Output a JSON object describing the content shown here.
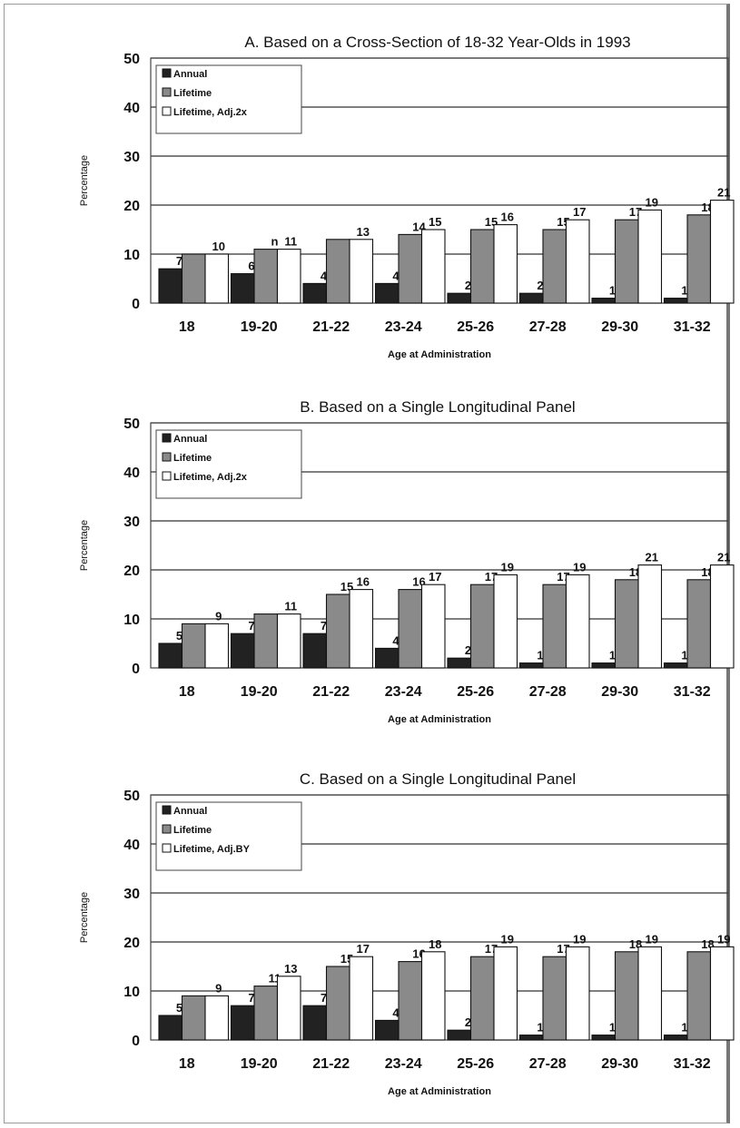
{
  "colors": {
    "annual": "#222222",
    "lifetime": "#8a8a8a",
    "adjusted": "#ffffff",
    "grid": "#333333"
  },
  "chart_data": [
    {
      "type": "bar",
      "title": "A. Based on a Cross-Section of 18-32 Year-Olds in 1993",
      "xlabel": "Age at Administration",
      "ylabel": "Percentage",
      "ylim": [
        0,
        50
      ],
      "yticks": [
        "0",
        "10",
        "20",
        "30",
        "40",
        "50"
      ],
      "grid": true,
      "legend_position": "top-left",
      "categories": [
        "18",
        "19-20",
        "21-22",
        "23-24",
        "25-26",
        "27-28",
        "29-30",
        "31-32"
      ],
      "series": [
        {
          "name": "Annual",
          "values": [
            7,
            6,
            4,
            4,
            2,
            2,
            1,
            1
          ],
          "labels": [
            "7",
            "6",
            "4",
            "4",
            "2",
            "2",
            "1",
            "1"
          ]
        },
        {
          "name": "Lifetime",
          "values": [
            10,
            11,
            13,
            14,
            15,
            15,
            17,
            18
          ],
          "labels": [
            "",
            "n",
            "",
            "14",
            "15",
            "15",
            "17",
            "18"
          ]
        },
        {
          "name": "Lifetime, Adj.2x",
          "values": [
            10,
            11,
            13,
            15,
            16,
            17,
            19,
            21
          ],
          "labels": [
            "10",
            "11",
            "13",
            "15",
            "16",
            "17",
            "19",
            "21"
          ]
        }
      ]
    },
    {
      "type": "bar",
      "title": "B. Based on a Single Longitudinal Panel",
      "xlabel": "Age at Administration",
      "ylabel": "Percentage",
      "ylim": [
        0,
        50
      ],
      "yticks": [
        "0",
        "10",
        "20",
        "30",
        "40",
        "50"
      ],
      "grid": true,
      "legend_position": "top-left",
      "categories": [
        "18",
        "19-20",
        "21-22",
        "23-24",
        "25-26",
        "27-28",
        "29-30",
        "31-32"
      ],
      "series": [
        {
          "name": "Annual",
          "values": [
            5,
            7,
            7,
            4,
            2,
            1,
            1,
            1
          ],
          "labels": [
            "5",
            "7",
            "7",
            "4",
            "2",
            "1",
            "1",
            "1"
          ]
        },
        {
          "name": "Lifetime",
          "values": [
            9,
            11,
            15,
            16,
            17,
            17,
            18,
            18
          ],
          "labels": [
            "",
            "",
            "15",
            "16",
            "17",
            "17",
            "18",
            "18"
          ]
        },
        {
          "name": "Lifetime, Adj.2x",
          "values": [
            9,
            11,
            16,
            17,
            19,
            19,
            21,
            21
          ],
          "labels": [
            "9",
            "11",
            "16",
            "17",
            "19",
            "19",
            "21",
            "21"
          ]
        }
      ]
    },
    {
      "type": "bar",
      "title": "C. Based on a Single Longitudinal Panel",
      "xlabel": "Age at Administration",
      "ylabel": "Percentage",
      "ylim": [
        0,
        50
      ],
      "yticks": [
        "0",
        "10",
        "20",
        "30",
        "40",
        "50"
      ],
      "grid": true,
      "legend_position": "top-left",
      "categories": [
        "18",
        "19-20",
        "21-22",
        "23-24",
        "25-26",
        "27-28",
        "29-30",
        "31-32"
      ],
      "series": [
        {
          "name": "Annual",
          "values": [
            5,
            7,
            7,
            4,
            2,
            1,
            1,
            1
          ],
          "labels": [
            "5",
            "7",
            "7",
            "4",
            "2",
            "1",
            "1",
            "1"
          ]
        },
        {
          "name": "Lifetime",
          "values": [
            9,
            11,
            15,
            16,
            17,
            17,
            18,
            18
          ],
          "labels": [
            "",
            "11",
            "15",
            "16",
            "17",
            "17",
            "18",
            "18"
          ]
        },
        {
          "name": "Lifetime, Adj.BY",
          "values": [
            9,
            13,
            17,
            18,
            19,
            19,
            19,
            19
          ],
          "labels": [
            "9",
            "13",
            "17",
            "18",
            "19",
            "19",
            "19",
            "19"
          ]
        }
      ]
    }
  ]
}
